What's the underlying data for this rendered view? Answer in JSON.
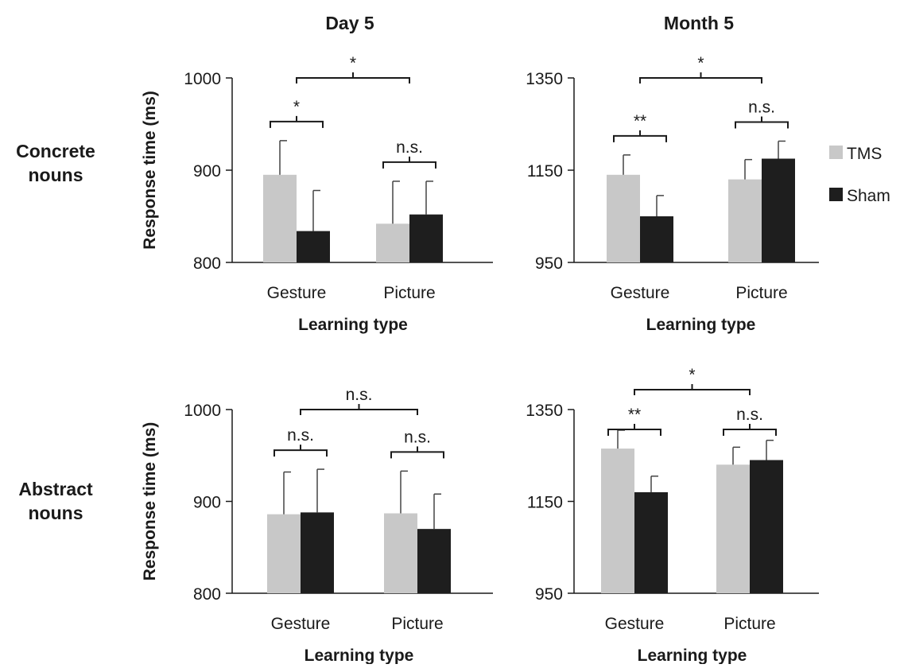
{
  "figure": {
    "columns": [
      "Day 5",
      "Month 5"
    ],
    "rows": [
      "Concrete\nnouns",
      "Abstract\nnouns"
    ],
    "legend": [
      {
        "label": "TMS",
        "color": "#c8c8c8"
      },
      {
        "label": "Sham",
        "color": "#1e1e1e"
      }
    ]
  },
  "chart_data": [
    {
      "type": "bar",
      "panel": "Day 5 / Concrete nouns",
      "categories": [
        "Gesture",
        "Picture"
      ],
      "series": [
        {
          "name": "TMS",
          "values": [
            895,
            842
          ],
          "errors": [
            37,
            46
          ]
        },
        {
          "name": "Sham",
          "values": [
            834,
            852
          ],
          "errors": [
            44,
            36
          ]
        }
      ],
      "xlabel": "Learning type",
      "ylabel": "Response time (ms)",
      "ylim": [
        800,
        1000
      ],
      "yticks": [
        800,
        900,
        1000
      ],
      "brackets": [
        {
          "from": "Gesture",
          "to": "Picture",
          "label": "*",
          "level": "upper"
        },
        {
          "from": "Gesture.TMS",
          "to": "Gesture.Sham",
          "label": "*",
          "level": "lower"
        },
        {
          "from": "Picture.TMS",
          "to": "Picture.Sham",
          "label": "n.s.",
          "level": "lower"
        }
      ]
    },
    {
      "type": "bar",
      "panel": "Month 5 / Concrete nouns",
      "categories": [
        "Gesture",
        "Picture"
      ],
      "series": [
        {
          "name": "TMS",
          "values": [
            1140,
            1130
          ],
          "errors": [
            43,
            43
          ]
        },
        {
          "name": "Sham",
          "values": [
            1050,
            1175
          ],
          "errors": [
            45,
            38
          ]
        }
      ],
      "xlabel": "Learning type",
      "ylabel": "",
      "ylim": [
        950,
        1350
      ],
      "yticks": [
        950,
        1150,
        1350
      ],
      "brackets": [
        {
          "from": "Gesture",
          "to": "Picture",
          "label": "*",
          "level": "upper"
        },
        {
          "from": "Gesture.TMS",
          "to": "Gesture.Sham",
          "label": "**",
          "level": "lower"
        },
        {
          "from": "Picture.TMS",
          "to": "Picture.Sham",
          "label": "n.s.",
          "level": "lower"
        }
      ]
    },
    {
      "type": "bar",
      "panel": "Day 5 / Abstract nouns",
      "categories": [
        "Gesture",
        "Picture"
      ],
      "series": [
        {
          "name": "TMS",
          "values": [
            886,
            887
          ],
          "errors": [
            46,
            46
          ]
        },
        {
          "name": "Sham",
          "values": [
            888,
            870
          ],
          "errors": [
            47,
            38
          ]
        }
      ],
      "xlabel": "Learning type",
      "ylabel": "Response time (ms)",
      "ylim": [
        800,
        1000
      ],
      "yticks": [
        800,
        900,
        1000
      ],
      "brackets": [
        {
          "from": "Gesture",
          "to": "Picture",
          "label": "n.s.",
          "level": "upper"
        },
        {
          "from": "Gesture.TMS",
          "to": "Gesture.Sham",
          "label": "n.s.",
          "level": "lower"
        },
        {
          "from": "Picture.TMS",
          "to": "Picture.Sham",
          "label": "n.s.",
          "level": "lower"
        }
      ]
    },
    {
      "type": "bar",
      "panel": "Month 5 / Abstract nouns",
      "categories": [
        "Gesture",
        "Picture"
      ],
      "series": [
        {
          "name": "TMS",
          "values": [
            1265,
            1230
          ],
          "errors": [
            40,
            38
          ]
        },
        {
          "name": "Sham",
          "values": [
            1170,
            1240
          ],
          "errors": [
            35,
            43
          ]
        }
      ],
      "xlabel": "Learning type",
      "ylabel": "",
      "ylim": [
        950,
        1350
      ],
      "yticks": [
        950,
        1150,
        1350
      ],
      "brackets": [
        {
          "from": "Gesture",
          "to": "Picture",
          "label": "*",
          "level": "upper"
        },
        {
          "from": "Gesture.TMS",
          "to": "Gesture.Sham",
          "label": "**",
          "level": "lower"
        },
        {
          "from": "Picture.TMS",
          "to": "Picture.Sham",
          "label": "n.s.",
          "level": "lower"
        }
      ]
    }
  ]
}
